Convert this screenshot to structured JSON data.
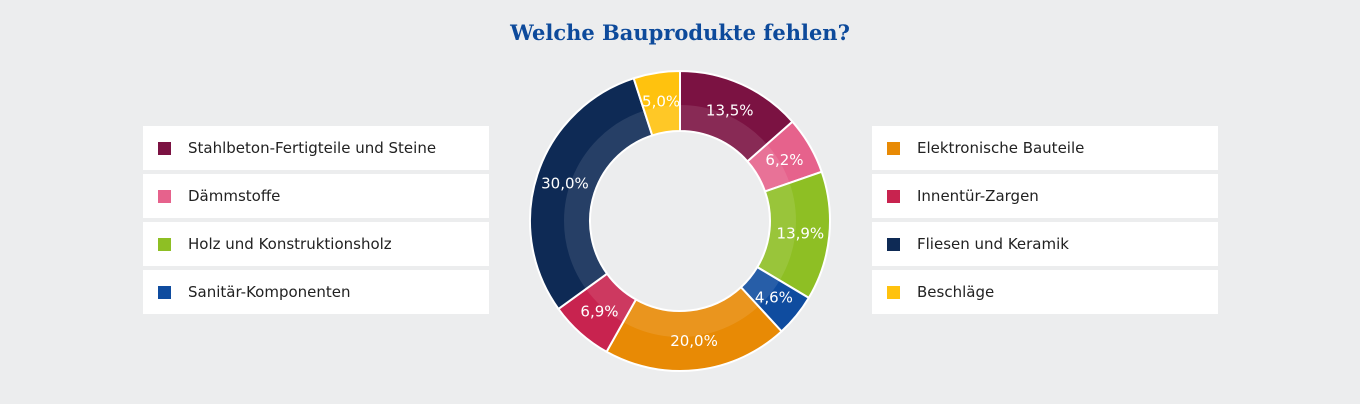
{
  "chart_data": {
    "type": "pie",
    "donut": true,
    "title": "Welche Bauprodukte fehlen?",
    "slices": [
      {
        "label": "Stahlbeton-Fertigteile und Steine",
        "value": 13.5,
        "value_label": "13,5%",
        "color": "#7b1242"
      },
      {
        "label": "Dämmstoffe",
        "value": 6.2,
        "value_label": "6,2%",
        "color": "#e6628c"
      },
      {
        "label": "Holz und Konstruktionsholz",
        "value": 13.9,
        "value_label": "13,9%",
        "color": "#8ebf24"
      },
      {
        "label": "Sanitär-Komponenten",
        "value": 4.6,
        "value_label": "4,6%",
        "color": "#0f4c9f"
      },
      {
        "label": "Elektronische Bauteile",
        "value": 20.0,
        "value_label": "20,0%",
        "color": "#e88a05"
      },
      {
        "label": "Innentür-Zargen",
        "value": 6.9,
        "value_label": "6,9%",
        "color": "#c8234f"
      },
      {
        "label": "Fliesen und Keramik",
        "value": 30.0,
        "value_label": "30,0%",
        "color": "#0e2a55"
      },
      {
        "label": "Beschläge",
        "value": 5.0,
        "value_label": "5,0%",
        "color": "#ffc20e"
      }
    ],
    "legend_left": [
      0,
      1,
      2,
      3
    ],
    "legend_right": [
      4,
      5,
      6,
      7
    ]
  }
}
